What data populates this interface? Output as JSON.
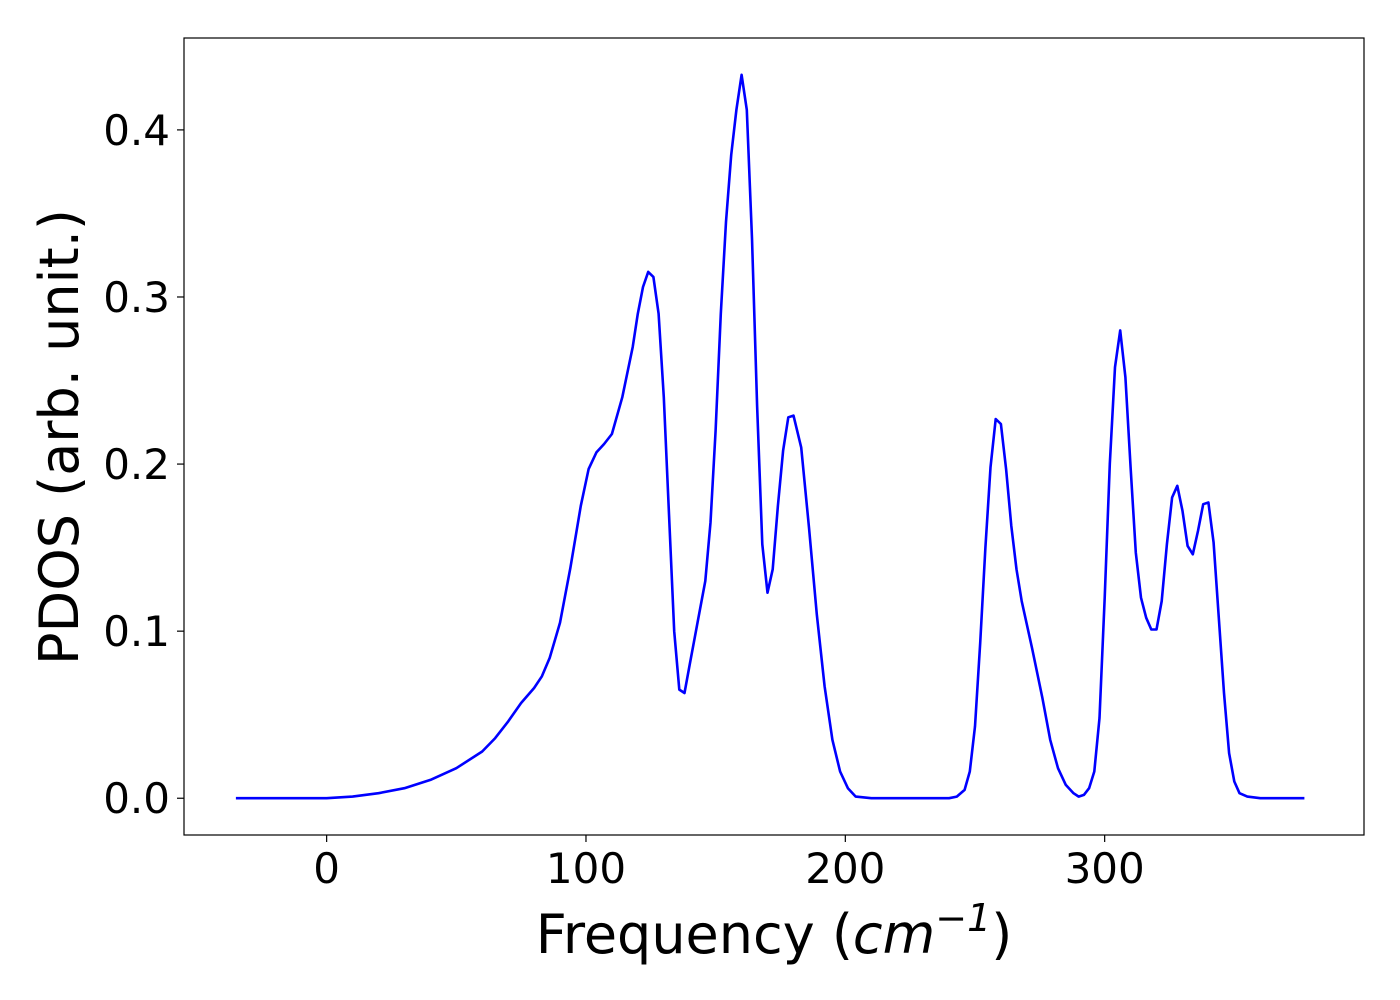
{
  "chart_data": {
    "type": "line",
    "title": "",
    "xlabel_main": "Frequency (",
    "xlabel_unit_base": "cm",
    "xlabel_unit_exp": "−1",
    "xlabel_close": ")",
    "ylabel": "PDOS (arb. unit.)",
    "xlim": [
      -55,
      400
    ],
    "ylim": [
      -0.022,
      0.455
    ],
    "xticks": [
      0,
      100,
      200,
      300
    ],
    "xtick_labels": [
      "0",
      "100",
      "200",
      "300"
    ],
    "yticks": [
      0.0,
      0.1,
      0.2,
      0.3,
      0.4
    ],
    "ytick_labels": [
      "0.0",
      "0.1",
      "0.2",
      "0.3",
      "0.4"
    ],
    "grid": false,
    "legend": "none",
    "series": [
      {
        "color": "#0000ff",
        "x": [
          -35,
          0,
          10,
          20,
          30,
          40,
          50,
          60,
          65,
          70,
          75,
          80,
          83,
          86,
          90,
          94,
          98,
          101,
          104,
          107,
          110,
          114,
          118,
          120,
          122,
          124,
          126,
          128,
          130,
          132,
          134,
          136,
          138,
          140,
          143,
          146,
          148,
          150,
          152,
          154,
          156,
          158,
          160,
          162,
          164,
          166,
          168,
          170,
          172,
          174,
          176,
          178,
          180,
          183,
          186,
          189,
          192,
          195,
          198,
          201,
          204,
          210,
          220,
          230,
          240,
          243,
          246,
          248,
          250,
          252,
          254,
          256,
          258,
          260,
          262,
          264,
          266,
          268,
          272,
          276,
          279,
          282,
          285,
          288,
          290,
          292,
          294,
          296,
          298,
          300,
          302,
          304,
          306,
          308,
          310,
          312,
          314,
          316,
          318,
          320,
          322,
          324,
          326,
          328,
          330,
          332,
          334,
          336,
          338,
          340,
          342,
          344,
          346,
          348,
          350,
          352,
          355,
          360,
          370,
          377
        ],
        "y": [
          0.0,
          0.0,
          0.001,
          0.003,
          0.006,
          0.011,
          0.018,
          0.028,
          0.036,
          0.046,
          0.057,
          0.066,
          0.073,
          0.084,
          0.105,
          0.138,
          0.175,
          0.197,
          0.207,
          0.212,
          0.218,
          0.24,
          0.27,
          0.29,
          0.306,
          0.315,
          0.312,
          0.29,
          0.24,
          0.17,
          0.1,
          0.065,
          0.063,
          0.08,
          0.105,
          0.13,
          0.165,
          0.22,
          0.29,
          0.345,
          0.385,
          0.412,
          0.433,
          0.412,
          0.335,
          0.235,
          0.152,
          0.123,
          0.137,
          0.175,
          0.208,
          0.228,
          0.229,
          0.21,
          0.162,
          0.11,
          0.067,
          0.035,
          0.016,
          0.006,
          0.001,
          0.0,
          0.0,
          0.0,
          0.0,
          0.001,
          0.005,
          0.016,
          0.043,
          0.093,
          0.15,
          0.198,
          0.227,
          0.224,
          0.197,
          0.163,
          0.137,
          0.118,
          0.09,
          0.06,
          0.035,
          0.018,
          0.008,
          0.003,
          0.001,
          0.002,
          0.006,
          0.016,
          0.048,
          0.12,
          0.2,
          0.258,
          0.28,
          0.252,
          0.198,
          0.147,
          0.12,
          0.108,
          0.101,
          0.101,
          0.118,
          0.152,
          0.18,
          0.187,
          0.172,
          0.151,
          0.146,
          0.16,
          0.176,
          0.177,
          0.153,
          0.108,
          0.063,
          0.027,
          0.01,
          0.003,
          0.001,
          0.0,
          0.0,
          0.0
        ]
      }
    ]
  }
}
